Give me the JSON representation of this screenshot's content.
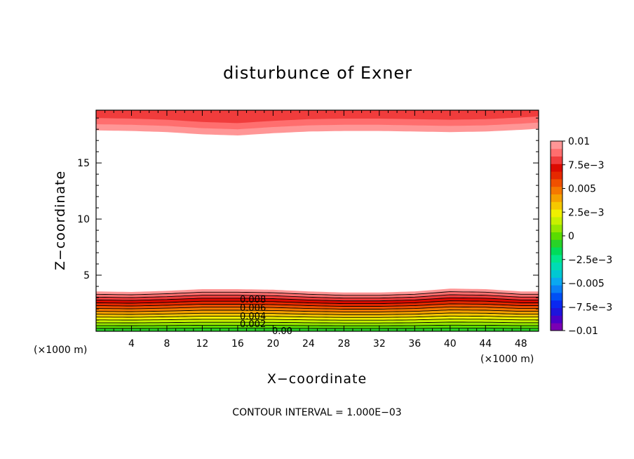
{
  "chart_data": {
    "type": "heatmap",
    "title": "disturbunce of Exner",
    "xlabel": "X−coordinate",
    "ylabel": "Z−coordinate",
    "x_unit": "(×1000 m)",
    "xlim": [
      0,
      50
    ],
    "ylim": [
      0,
      19.7
    ],
    "x_ticks": [
      4,
      8,
      12,
      16,
      20,
      24,
      28,
      32,
      36,
      40,
      44,
      48
    ],
    "x_tick_labels": [
      "4",
      "8",
      "12",
      "16",
      "20",
      "24",
      "28",
      "32",
      "36",
      "40",
      "44",
      "48"
    ],
    "y_ticks": [
      5,
      10,
      15
    ],
    "y_tick_labels": [
      "5",
      "10",
      "15"
    ],
    "contour_interval_text": "CONTOUR INTERVAL = 1.000E−03",
    "contour_labels": [
      "0.008",
      "0.006",
      "0.004",
      "0.002",
      "0.00"
    ],
    "colorbar": {
      "levels": [
        -0.01,
        -0.0075,
        -0.005,
        -0.0025,
        0,
        0.0025,
        0.005,
        0.0075,
        0.01
      ],
      "labels": [
        "0.01",
        "7.5e−3",
        "0.005",
        "2.5e−3",
        "0",
        "−2.5e−3",
        "−0.005",
        "−7.5e−3",
        "−0.01"
      ],
      "colors_low_to_high": [
        "#7a00b4",
        "#4b00c8",
        "#1e14dc",
        "#0a28f0",
        "#0050f5",
        "#0a80f5",
        "#0aa8f0",
        "#00c8d2",
        "#00dcb4",
        "#00e68c",
        "#00dc5a",
        "#28d228",
        "#5adc00",
        "#96e600",
        "#c8f000",
        "#f0f000",
        "#f5c800",
        "#f5a000",
        "#f57800",
        "#f05000",
        "#e62800",
        "#dc0a00",
        "#f03c3c",
        "#ff6e6e",
        "#ff9696"
      ]
    },
    "fields": {
      "bottom_layer": {
        "description_top_edge_z": 3.5,
        "top_edge_x": [
          0,
          4,
          8,
          12,
          16,
          20,
          24,
          28,
          32,
          36,
          40,
          44,
          48,
          50
        ],
        "top_edge_z": [
          3.55,
          3.5,
          3.6,
          3.75,
          3.75,
          3.7,
          3.55,
          3.45,
          3.45,
          3.55,
          3.8,
          3.75,
          3.55,
          3.55
        ]
      },
      "top_layer": {
        "bottom_edge_x": [
          0,
          4,
          8,
          12,
          16,
          20,
          24,
          28,
          32,
          36,
          40,
          44,
          48,
          50
        ],
        "bottom_edge_z": [
          17.9,
          17.85,
          17.75,
          17.55,
          17.45,
          17.65,
          17.8,
          17.85,
          17.85,
          17.8,
          17.75,
          17.8,
          17.95,
          18.05
        ]
      }
    }
  }
}
